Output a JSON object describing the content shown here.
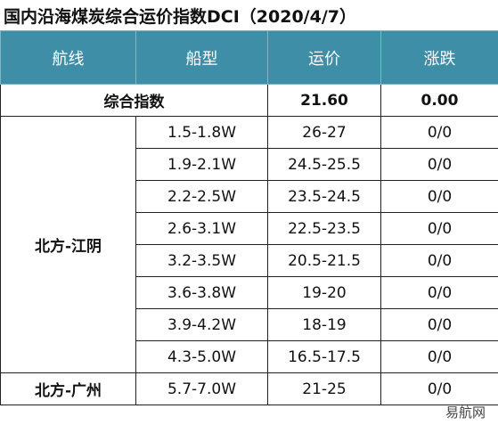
{
  "title": "国内沿海煤炭综合运价指数DCI（2020/4/7）",
  "table": {
    "header": [
      "航线",
      "船型",
      "运价",
      "涨跌"
    ],
    "composite": {
      "label": "综合指数",
      "price": "21.60",
      "change": "0.00"
    },
    "groups": [
      {
        "route": "北方-江阴",
        "rows": [
          [
            "1.5-1.8W",
            "26-27",
            "0/0"
          ],
          [
            "1.9-2.1W",
            "24.5-25.5",
            "0/0"
          ],
          [
            "2.2-2.5W",
            "23.5-24.5",
            "0/0"
          ],
          [
            "2.6-3.1W",
            "22.5-23.5",
            "0/0"
          ],
          [
            "3.2-3.5W",
            "20.5-21.5",
            "0/0"
          ],
          [
            "3.6-3.8W",
            "19-20",
            "0/0"
          ],
          [
            "3.9-4.2W",
            "18-19",
            "0/0"
          ],
          [
            "4.3-5.0W",
            "16.5-17.5",
            "0/0"
          ]
        ]
      },
      {
        "route": "北方-广州",
        "rows": [
          [
            "5.7-7.0W",
            "21-25",
            "0/0"
          ]
        ]
      }
    ]
  },
  "watermark": "易航网"
}
